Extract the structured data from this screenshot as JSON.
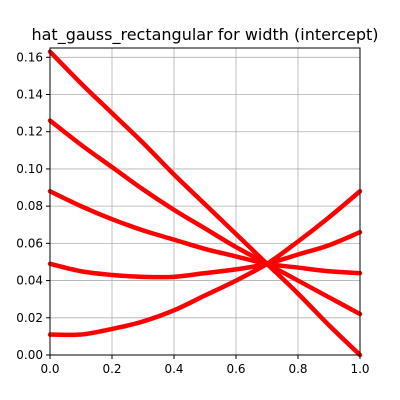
{
  "chart_data": {
    "type": "line",
    "title": "hat_gauss_rectangular for width (intercept)",
    "xlabel": "",
    "ylabel": "",
    "xlim": [
      0,
      1
    ],
    "ylim": [
      0,
      0.165
    ],
    "xticks": [
      0.0,
      0.2,
      0.4,
      0.6,
      0.8,
      1.0
    ],
    "xtick_labels": [
      "0.0",
      "0.2",
      "0.4",
      "0.6",
      "0.8",
      "1.0"
    ],
    "yticks": [
      0.0,
      0.02,
      0.04,
      0.06,
      0.08,
      0.1,
      0.12,
      0.14,
      0.16
    ],
    "ytick_labels": [
      "0.00",
      "0.02",
      "0.04",
      "0.06",
      "0.08",
      "0.10",
      "0.12",
      "0.14",
      "0.16"
    ],
    "grid": true,
    "line_color": "#ff0000",
    "series": [
      {
        "x": [
          0,
          0.1,
          0.2,
          0.3,
          0.4,
          0.5,
          0.6,
          0.7,
          0.8,
          0.9,
          1.0
        ],
        "values": [
          0.163,
          0.146,
          0.13,
          0.114,
          0.097,
          0.081,
          0.065,
          0.049,
          0.033,
          0.016,
          0.0
        ]
      },
      {
        "x": [
          0,
          0.1,
          0.2,
          0.3,
          0.4,
          0.5,
          0.6,
          0.7,
          0.8,
          0.9,
          1.0
        ],
        "values": [
          0.126,
          0.113,
          0.101,
          0.089,
          0.078,
          0.068,
          0.058,
          0.049,
          0.04,
          0.031,
          0.022
        ]
      },
      {
        "x": [
          0,
          0.1,
          0.2,
          0.3,
          0.4,
          0.5,
          0.6,
          0.7,
          0.8,
          0.9,
          1.0
        ],
        "values": [
          0.088,
          0.08,
          0.073,
          0.067,
          0.062,
          0.057,
          0.053,
          0.049,
          0.047,
          0.045,
          0.044
        ]
      },
      {
        "x": [
          0,
          0.1,
          0.2,
          0.3,
          0.4,
          0.5,
          0.6,
          0.7,
          0.8,
          0.9,
          1.0
        ],
        "values": [
          0.049,
          0.045,
          0.043,
          0.042,
          0.042,
          0.044,
          0.046,
          0.049,
          0.054,
          0.059,
          0.066
        ]
      },
      {
        "x": [
          0,
          0.1,
          0.2,
          0.3,
          0.4,
          0.5,
          0.6,
          0.7,
          0.8,
          0.9,
          1.0
        ],
        "values": [
          0.011,
          0.011,
          0.014,
          0.018,
          0.024,
          0.032,
          0.04,
          0.049,
          0.061,
          0.074,
          0.088
        ]
      }
    ]
  }
}
